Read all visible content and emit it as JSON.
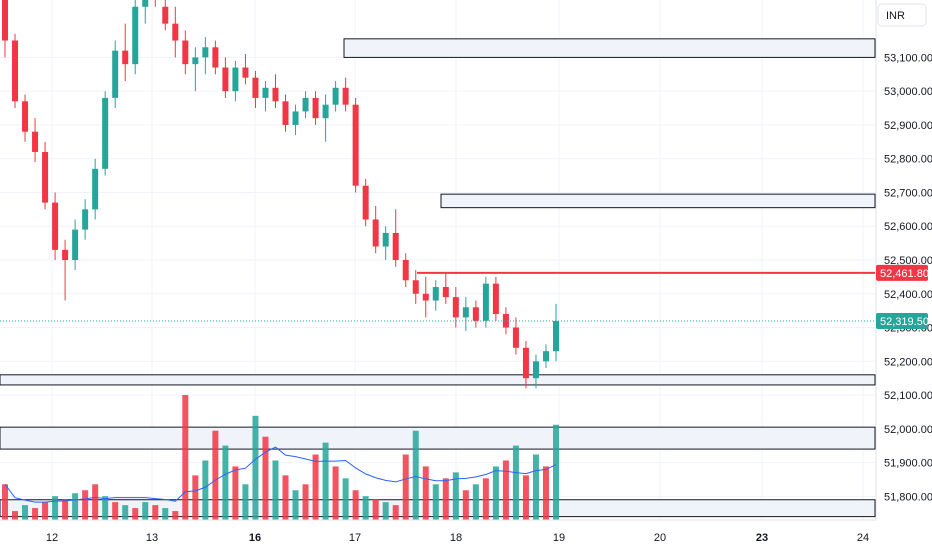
{
  "currency": "INR",
  "colors": {
    "up": "#26a69a",
    "down": "#f23645",
    "grid": "#f0f3fa",
    "zone_fill": "#f0f3fa",
    "zone_stroke": "#131722",
    "resistance_line": "#f23645",
    "volume_ma": "#2962ff",
    "current_price_line": "#26a69a"
  },
  "chart_data": {
    "type": "candlestick",
    "y_range": [
      51730,
      53270
    ],
    "y_ticks": [
      "53,100.00",
      "53,000.00",
      "52,900.00",
      "52,800.00",
      "52,700.00",
      "52,600.00",
      "52,500.00",
      "52,400.00",
      "52,300.00",
      "52,200.00",
      "52,100.00",
      "52,000.00",
      "51,900.00",
      "51,800.00"
    ],
    "x_ticks": [
      {
        "label": "12",
        "bold": false
      },
      {
        "label": "13",
        "bold": false
      },
      {
        "label": "16",
        "bold": true
      },
      {
        "label": "17",
        "bold": false
      },
      {
        "label": "18",
        "bold": false
      },
      {
        "label": "19",
        "bold": false
      },
      {
        "label": "20",
        "bold": false
      },
      {
        "label": "23",
        "bold": true
      },
      {
        "label": "24",
        "bold": false
      }
    ],
    "price_labels": {
      "resistance": "52,461.80",
      "current": "52,319.50"
    },
    "horizontal_line": 52461.8,
    "current_price": 52319.5,
    "zones": [
      {
        "top": 53155,
        "bottom": 53100
      },
      {
        "top": 52695,
        "bottom": 52655
      },
      {
        "top": 52160,
        "bottom": 52130
      },
      {
        "top": 52005,
        "bottom": 51940
      },
      {
        "top": 51790,
        "bottom": 51740
      }
    ],
    "candles": [
      [
        53300,
        53400,
        53100,
        53150
      ],
      [
        53150,
        53170,
        52950,
        52970
      ],
      [
        52970,
        52990,
        52850,
        52880
      ],
      [
        52880,
        52920,
        52790,
        52820
      ],
      [
        52820,
        52850,
        52650,
        52670
      ],
      [
        52670,
        52700,
        52500,
        52530
      ],
      [
        52530,
        52560,
        52380,
        52500
      ],
      [
        52500,
        52620,
        52470,
        52590
      ],
      [
        52590,
        52680,
        52560,
        52650
      ],
      [
        52650,
        52800,
        52620,
        52770
      ],
      [
        52770,
        53000,
        52750,
        52980
      ],
      [
        52980,
        53150,
        52950,
        53120
      ],
      [
        53120,
        53200,
        53030,
        53080
      ],
      [
        53080,
        53300,
        53050,
        53250
      ],
      [
        53250,
        53350,
        53200,
        53300
      ],
      [
        53300,
        53350,
        53250,
        53280
      ],
      [
        53250,
        53300,
        53180,
        53200
      ],
      [
        53200,
        53250,
        53100,
        53150
      ],
      [
        53150,
        53180,
        53050,
        53080
      ],
      [
        53080,
        53130,
        53000,
        53100
      ],
      [
        53100,
        53160,
        53050,
        53130
      ],
      [
        53130,
        53150,
        53050,
        53070
      ],
      [
        53070,
        53100,
        52980,
        53000
      ],
      [
        53000,
        53090,
        52970,
        53070
      ],
      [
        53070,
        53110,
        53020,
        53040
      ],
      [
        53040,
        53060,
        52950,
        52980
      ],
      [
        52980,
        53030,
        52940,
        53010
      ],
      [
        53010,
        53050,
        52950,
        52970
      ],
      [
        52970,
        52990,
        52880,
        52900
      ],
      [
        52900,
        52960,
        52870,
        52940
      ],
      [
        52940,
        53000,
        52920,
        52980
      ],
      [
        52980,
        53000,
        52900,
        52920
      ],
      [
        52920,
        52990,
        52850,
        52960
      ],
      [
        52960,
        53030,
        52940,
        53010
      ],
      [
        53010,
        53040,
        52940,
        52960
      ],
      [
        52960,
        52980,
        52700,
        52720
      ],
      [
        52720,
        52740,
        52600,
        52620
      ],
      [
        52620,
        52660,
        52520,
        52540
      ],
      [
        52540,
        52600,
        52500,
        52580
      ],
      [
        52580,
        52650,
        52480,
        52500
      ],
      [
        52500,
        52520,
        52420,
        52440
      ],
      [
        52440,
        52470,
        52370,
        52400
      ],
      [
        52400,
        52450,
        52330,
        52380
      ],
      [
        52380,
        52440,
        52350,
        52420
      ],
      [
        52420,
        52460,
        52370,
        52390
      ],
      [
        52390,
        52420,
        52300,
        52330
      ],
      [
        52330,
        52390,
        52290,
        52360
      ],
      [
        52360,
        52380,
        52300,
        52320
      ],
      [
        52320,
        52450,
        52300,
        52430
      ],
      [
        52430,
        52450,
        52320,
        52340
      ],
      [
        52340,
        52360,
        52280,
        52300
      ],
      [
        52300,
        52330,
        52220,
        52240
      ],
      [
        52240,
        52260,
        52120,
        52150
      ],
      [
        52150,
        52220,
        52120,
        52200
      ],
      [
        52200,
        52250,
        52180,
        52230
      ],
      [
        52230,
        52370,
        52200,
        52319.5
      ]
    ],
    "volume": [
      {
        "v": 12,
        "up": false
      },
      {
        "v": 3,
        "up": false
      },
      {
        "v": 5,
        "up": true
      },
      {
        "v": 4,
        "up": false
      },
      {
        "v": 6,
        "up": false
      },
      {
        "v": 8,
        "up": true
      },
      {
        "v": 7,
        "up": false
      },
      {
        "v": 9,
        "up": true
      },
      {
        "v": 10,
        "up": false
      },
      {
        "v": 12,
        "up": false
      },
      {
        "v": 8,
        "up": true
      },
      {
        "v": 6,
        "up": false
      },
      {
        "v": 5,
        "up": true
      },
      {
        "v": 4,
        "up": false
      },
      {
        "v": 6,
        "up": true
      },
      {
        "v": 5,
        "up": false
      },
      {
        "v": 4,
        "up": true
      },
      {
        "v": 3,
        "up": false
      },
      {
        "v": 42,
        "up": false
      },
      {
        "v": 15,
        "up": false
      },
      {
        "v": 20,
        "up": true
      },
      {
        "v": 30,
        "up": false
      },
      {
        "v": 25,
        "up": true
      },
      {
        "v": 18,
        "up": false
      },
      {
        "v": 12,
        "up": true
      },
      {
        "v": 35,
        "up": true
      },
      {
        "v": 28,
        "up": false
      },
      {
        "v": 20,
        "up": true
      },
      {
        "v": 15,
        "up": false
      },
      {
        "v": 10,
        "up": true
      },
      {
        "v": 12,
        "up": false
      },
      {
        "v": 22,
        "up": false
      },
      {
        "v": 26,
        "up": true
      },
      {
        "v": 18,
        "up": false
      },
      {
        "v": 14,
        "up": true
      },
      {
        "v": 10,
        "up": false
      },
      {
        "v": 8,
        "up": true
      },
      {
        "v": 7,
        "up": false
      },
      {
        "v": 6,
        "up": true
      },
      {
        "v": 5,
        "up": false
      },
      {
        "v": 22,
        "up": false
      },
      {
        "v": 30,
        "up": true
      },
      {
        "v": 18,
        "up": false
      },
      {
        "v": 12,
        "up": true
      },
      {
        "v": 14,
        "up": false
      },
      {
        "v": 16,
        "up": true
      },
      {
        "v": 10,
        "up": false
      },
      {
        "v": 12,
        "up": true
      },
      {
        "v": 14,
        "up": false
      },
      {
        "v": 18,
        "up": true
      },
      {
        "v": 20,
        "up": false
      },
      {
        "v": 25,
        "up": true
      },
      {
        "v": 15,
        "up": false
      },
      {
        "v": 22,
        "up": true
      },
      {
        "v": 18,
        "up": false
      },
      {
        "v": 32,
        "up": true
      }
    ]
  }
}
